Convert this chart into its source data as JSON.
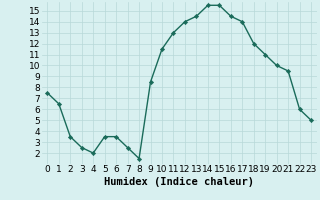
{
  "x": [
    0,
    1,
    2,
    3,
    4,
    5,
    6,
    7,
    8,
    9,
    10,
    11,
    12,
    13,
    14,
    15,
    16,
    17,
    18,
    19,
    20,
    21,
    22,
    23
  ],
  "y": [
    7.5,
    6.5,
    3.5,
    2.5,
    2.0,
    3.5,
    3.5,
    2.5,
    1.5,
    8.5,
    11.5,
    13.0,
    14.0,
    14.5,
    15.5,
    15.5,
    14.5,
    14.0,
    12.0,
    11.0,
    10.0,
    9.5,
    6.0,
    5.0
  ],
  "xlabel": "Humidex (Indice chaleur)",
  "xlim": [
    -0.5,
    23.5
  ],
  "ylim": [
    1.0,
    15.8
  ],
  "yticks": [
    2,
    3,
    4,
    5,
    6,
    7,
    8,
    9,
    10,
    11,
    12,
    13,
    14,
    15
  ],
  "xticks": [
    0,
    1,
    2,
    3,
    4,
    5,
    6,
    7,
    8,
    9,
    10,
    11,
    12,
    13,
    14,
    15,
    16,
    17,
    18,
    19,
    20,
    21,
    22,
    23
  ],
  "line_color": "#1a6b5a",
  "marker": "D",
  "marker_size": 2.2,
  "bg_color": "#d8f0f0",
  "grid_color": "#b8d8d8",
  "xlabel_fontsize": 7.5,
  "tick_fontsize": 6.5,
  "linewidth": 1.0
}
